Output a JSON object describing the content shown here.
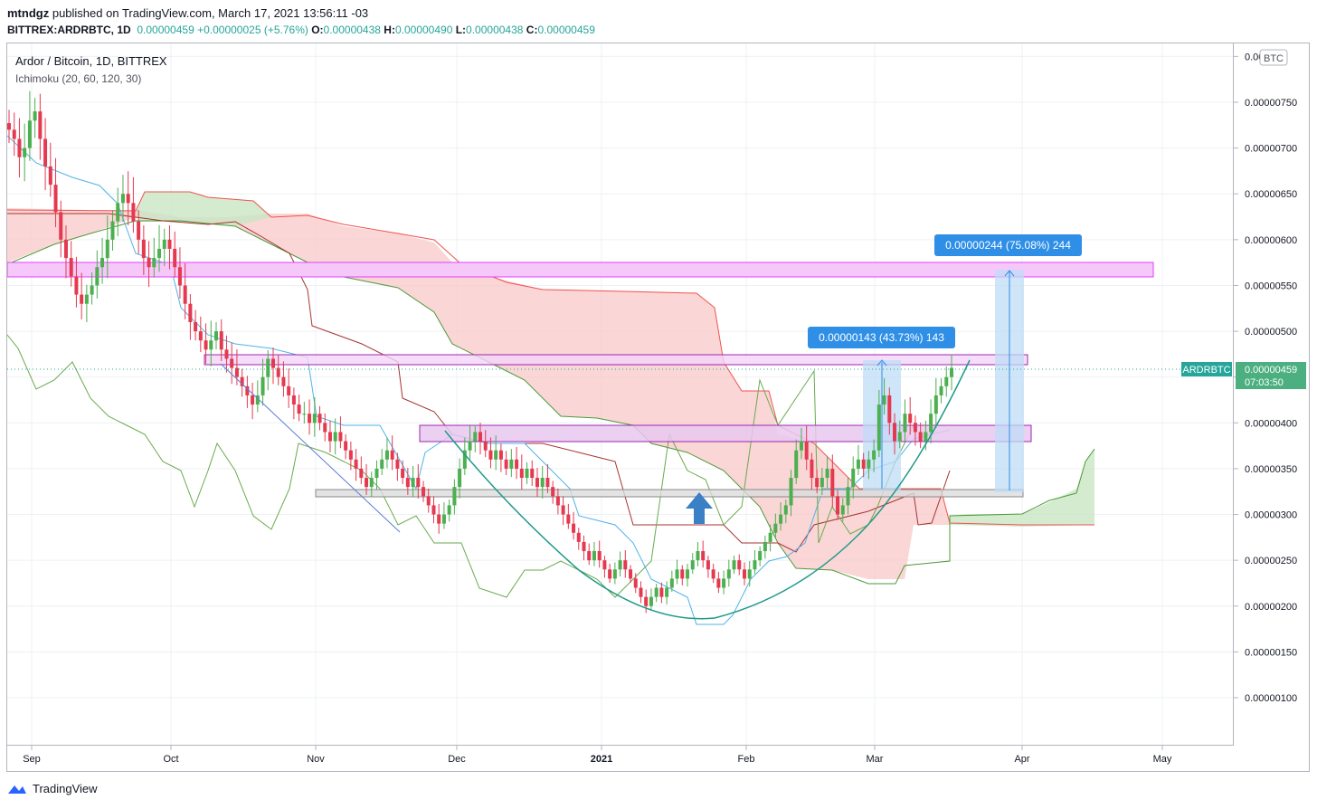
{
  "header": {
    "author": "mtndgz",
    "published": "published on TradingView.com, March 17, 2021 13:56:11 -03",
    "symbol": "BITTREX:ARDRBTC, 1D",
    "last": "0.00000459",
    "change": "+0.00000025 (+5.76%)",
    "o_label": "O:",
    "o": "0.00000438",
    "h_label": "H:",
    "h": "0.00000490",
    "l_label": "L:",
    "l": "0.00000438",
    "c_label": "C:",
    "c": "0.00000459"
  },
  "legend": {
    "title": "Ardor / Bitcoin, 1D, BITTREX",
    "indicator": "Ichimoku (20, 60, 120, 30)",
    "currency": "BTC"
  },
  "price_tag": {
    "symbol": "ARDRBTC",
    "price": "0.00000459",
    "countdown": "07:03:50"
  },
  "measurements": [
    {
      "label": "0.00000143 (43.73%) 143"
    },
    {
      "label": "0.00000244 (75.08%) 244"
    }
  ],
  "footer": {
    "brand": "TradingView"
  },
  "colors": {
    "up": "#26a69a",
    "down": "#ef5350",
    "candle_up": "#4caf50",
    "candle_down": "#e53950",
    "magenta": "#e040fb",
    "measure": "#2f8fe6",
    "kijun": "#a83232",
    "chikou": "#6aaa4e",
    "tenkan": "#4fb3e8"
  },
  "chart_data": {
    "type": "candlestick",
    "x_axis_ticks": [
      "Sep",
      "Oct",
      "Nov",
      "Dec",
      "2021",
      "Feb",
      "Mar",
      "Apr",
      "May"
    ],
    "y_axis_ticks": [
      "0.00000100",
      "0.00000150",
      "0.00000200",
      "0.00000250",
      "0.00000300",
      "0.00000350",
      "0.00000400",
      "0.00000450",
      "0.00000500",
      "0.00000550",
      "0.00000600",
      "0.00000650",
      "0.00000700",
      "0.00000750",
      "0.000008"
    ],
    "ylim": [
      5e-07,
      8.05e-06
    ],
    "closes": [
      7.2e-06,
      7.1e-06,
      6.9e-06,
      7e-06,
      7.3e-06,
      7.4e-06,
      7.1e-06,
      6.8e-06,
      6.6e-06,
      6.3e-06,
      6e-06,
      5.8e-06,
      5.6e-06,
      5.4e-06,
      5.3e-06,
      5.4e-06,
      5.5e-06,
      5.7e-06,
      5.8e-06,
      6e-06,
      6.2e-06,
      6.4e-06,
      6.5e-06,
      6.4e-06,
      6.2e-06,
      6e-06,
      5.8e-06,
      5.7e-06,
      5.8e-06,
      5.9e-06,
      6e-06,
      5.9e-06,
      5.7e-06,
      5.5e-06,
      5.3e-06,
      5.1e-06,
      5e-06,
      4.9e-06,
      4.8e-06,
      4.9e-06,
      5e-06,
      4.8e-06,
      4.7e-06,
      4.6e-06,
      4.5e-06,
      4.4e-06,
      4.3e-06,
      4.2e-06,
      4.3e-06,
      4.5e-06,
      4.7e-06,
      4.6e-06,
      4.5e-06,
      4.4e-06,
      4.3e-06,
      4.2e-06,
      4.1e-06,
      4.1e-06,
      4e-06,
      4.1e-06,
      4e-06,
      3.9e-06,
      3.8e-06,
      3.9e-06,
      3.8e-06,
      3.7e-06,
      3.6e-06,
      3.5e-06,
      3.4e-06,
      3.3e-06,
      3.4e-06,
      3.5e-06,
      3.6e-06,
      3.7e-06,
      3.6e-06,
      3.5e-06,
      3.4e-06,
      3.3e-06,
      3.4e-06,
      3.3e-06,
      3.2e-06,
      3.1e-06,
      3e-06,
      2.9e-06,
      3e-06,
      3.1e-06,
      3.3e-06,
      3.5e-06,
      3.7e-06,
      3.8e-06,
      3.9e-06,
      3.8e-06,
      3.7e-06,
      3.6e-06,
      3.7e-06,
      3.6e-06,
      3.5e-06,
      3.6e-06,
      3.5e-06,
      3.4e-06,
      3.5e-06,
      3.4e-06,
      3.3e-06,
      3.4e-06,
      3.3e-06,
      3.2e-06,
      3.1e-06,
      3e-06,
      2.9e-06,
      2.8e-06,
      2.7e-06,
      2.6e-06,
      2.5e-06,
      2.6e-06,
      2.5e-06,
      2.4e-06,
      2.3e-06,
      2.4e-06,
      2.5e-06,
      2.4e-06,
      2.3e-06,
      2.2e-06,
      2.1e-06,
      2e-06,
      2.1e-06,
      2.2e-06,
      2.1e-06,
      2.2e-06,
      2.3e-06,
      2.4e-06,
      2.3e-06,
      2.4e-06,
      2.5e-06,
      2.6e-06,
      2.5e-06,
      2.4e-06,
      2.3e-06,
      2.2e-06,
      2.3e-06,
      2.4e-06,
      2.5e-06,
      2.4e-06,
      2.3e-06,
      2.4e-06,
      2.5e-06,
      2.6e-06,
      2.7e-06,
      2.8e-06,
      2.9e-06,
      3e-06,
      3.1e-06,
      3.4e-06,
      3.7e-06,
      3.8e-06,
      3.6e-06,
      3.4e-06,
      3.3e-06,
      3.4e-06,
      3.5e-06,
      3.2e-06,
      3e-06,
      3.1e-06,
      3.3e-06,
      3.5e-06,
      3.6e-06,
      3.5e-06,
      3.6e-06,
      3.7e-06,
      4.2e-06,
      4.3e-06,
      4e-06,
      3.8e-06,
      3.9e-06,
      4.1e-06,
      4e-06,
      3.9e-06,
      3.8e-06,
      3.9e-06,
      4.1e-06,
      4.3e-06,
      4.4e-06,
      4.5e-06,
      4.6e-06
    ]
  }
}
